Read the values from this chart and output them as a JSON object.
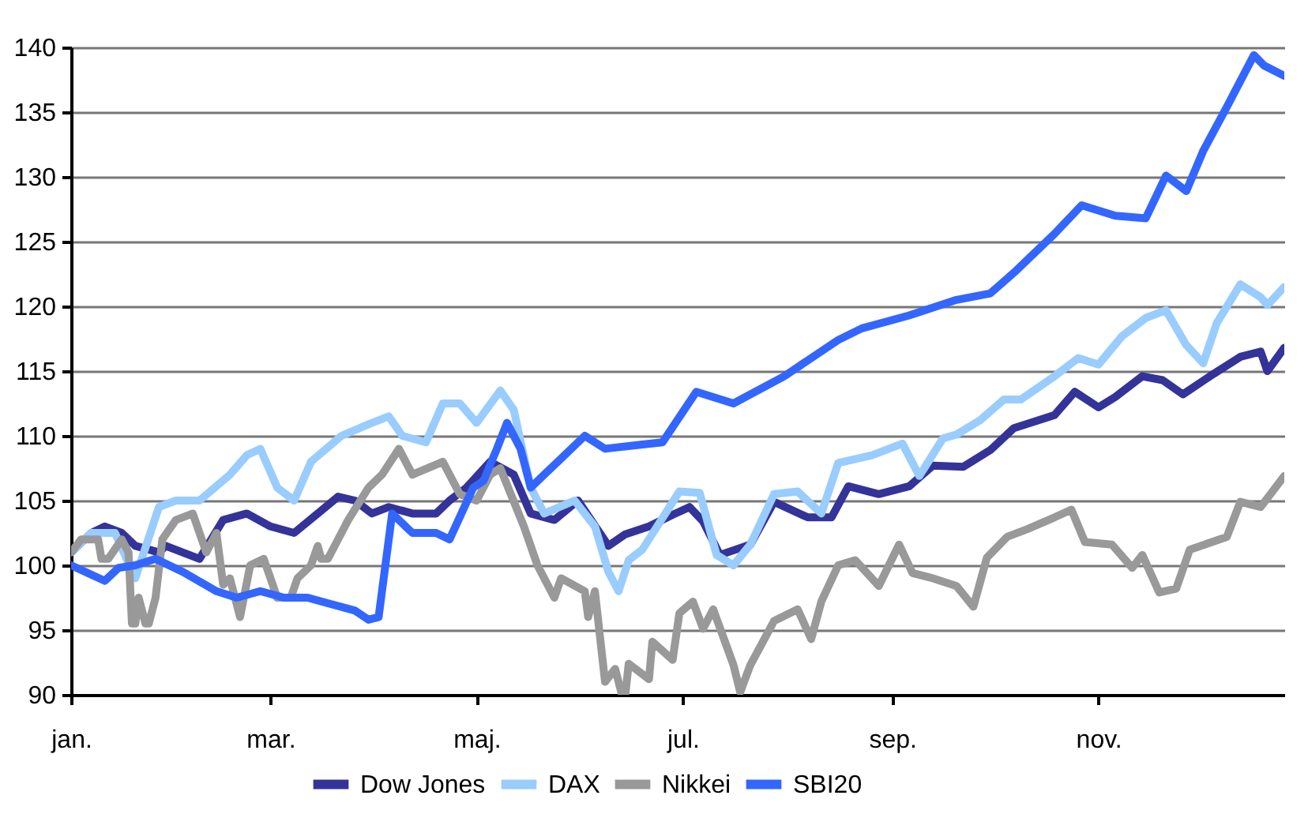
{
  "chart_data": {
    "type": "line",
    "xlim": [
      "--01-01",
      "--12-26"
    ],
    "ylim": [
      90,
      140
    ],
    "xticks": [
      {
        "value": "--01-01",
        "label": "jan."
      },
      {
        "value": "--03-01",
        "label": "mar."
      },
      {
        "value": "--05-01",
        "label": "maj."
      },
      {
        "value": "--07-01",
        "label": "jul."
      },
      {
        "value": "--09-01",
        "label": "sep."
      },
      {
        "value": "--11-01",
        "label": "nov."
      }
    ],
    "yticks": [
      90,
      95,
      100,
      105,
      110,
      115,
      120,
      125,
      130,
      135,
      140
    ],
    "grid": "y",
    "legend": "bottom",
    "marker": "none",
    "line_style": "solid",
    "series": [
      {
        "name": "Dow Jones",
        "color": "#333399",
        "x": [
          "--01-01",
          "--01-07",
          "--01-11",
          "--01-16",
          "--01-20",
          "--01-27",
          "--01-29",
          "--02-08",
          "--02-15",
          "--02-22",
          "--03-01",
          "--03-08",
          "--03-15",
          "--03-21",
          "--03-26",
          "--03-31",
          "--04-05",
          "--04-12",
          "--04-19",
          "--04-23",
          "--04-28",
          "--05-05",
          "--05-12",
          "--05-17",
          "--05-24",
          "--05-31",
          "--06-09",
          "--06-14",
          "--06-21",
          "--06-28",
          "--07-03",
          "--07-07",
          "--07-12",
          "--07-21",
          "--07-28",
          "--08-07",
          "--08-14",
          "--08-19",
          "--08-28",
          "--09-06",
          "--09-13",
          "--09-22",
          "--09-30",
          "--10-07",
          "--10-19",
          "--10-25",
          "--11-01",
          "--11-06",
          "--11-14",
          "--11-20",
          "--11-26",
          "--12-04",
          "--12-13",
          "--12-19",
          "--12-21",
          "--12-26"
        ],
        "values": [
          101,
          102.5,
          103,
          102.5,
          101.5,
          101,
          101.5,
          100.5,
          103.5,
          104,
          103,
          102.5,
          104,
          105.3,
          105,
          104,
          104.5,
          104,
          104,
          105,
          106,
          108,
          107,
          104,
          103.5,
          105,
          101.5,
          102.4,
          103,
          103.9,
          104.5,
          103.4,
          100.8,
          101.6,
          104.9,
          103.7,
          103.7,
          106.1,
          105.5,
          106.1,
          107.7,
          107.6,
          108.9,
          110.6,
          111.6,
          113.4,
          112.2,
          113,
          114.6,
          114.3,
          113.2,
          114.6,
          116.1,
          116.5,
          115,
          116.8
        ]
      },
      {
        "name": "DAX",
        "color": "#99ccff",
        "x": [
          "--01-01",
          "--01-07",
          "--01-14",
          "--01-20",
          "--01-27",
          "--02-01",
          "--02-08",
          "--02-17",
          "--02-22",
          "--02-26",
          "--03-03",
          "--03-08",
          "--03-13",
          "--03-22",
          "--03-31",
          "--04-05",
          "--04-09",
          "--04-16",
          "--04-21",
          "--04-26",
          "--05-01",
          "--05-08",
          "--05-12",
          "--05-17",
          "--05-21",
          "--05-30",
          "--06-05",
          "--06-09",
          "--06-12",
          "--06-15",
          "--06-19",
          "--06-30",
          "--07-06",
          "--07-11",
          "--07-16",
          "--07-21",
          "--07-28",
          "--08-04",
          "--08-11",
          "--08-16",
          "--08-26",
          "--09-04",
          "--09-09",
          "--09-16",
          "--09-20",
          "--09-27",
          "--10-04",
          "--10-09",
          "--10-19",
          "--10-26",
          "--11-01",
          "--11-08",
          "--11-15",
          "--11-21",
          "--11-27",
          "--12-02",
          "--12-06",
          "--12-13",
          "--12-19",
          "--12-21",
          "--12-26"
        ],
        "values": [
          101,
          102.5,
          102.5,
          99,
          104.5,
          105,
          105,
          107,
          108.5,
          109,
          106,
          105,
          108,
          110,
          111,
          111.5,
          110,
          109.5,
          112.5,
          112.5,
          111,
          113.5,
          112,
          106,
          104,
          105,
          103,
          99.5,
          98,
          100.4,
          101.2,
          105.7,
          105.6,
          100.8,
          100,
          101.6,
          105.5,
          105.7,
          104,
          107.9,
          108.5,
          109.4,
          106.9,
          109.8,
          110.1,
          111.2,
          112.8,
          112.8,
          114.6,
          116,
          115.5,
          117.7,
          119.1,
          119.7,
          117,
          115.6,
          118.7,
          121.7,
          120.7,
          120.1,
          121.5
        ]
      },
      {
        "name": "Nikkei",
        "color": "#999999",
        "x": [
          "--01-01",
          "--01-04",
          "--01-09",
          "--01-10",
          "--01-12",
          "--01-16",
          "--01-18",
          "--01-19",
          "--01-20",
          "--01-21",
          "--01-23",
          "--01-24",
          "--01-26",
          "--01-28",
          "--02-01",
          "--02-06",
          "--02-10",
          "--02-13",
          "--02-15",
          "--02-17",
          "--02-20",
          "--02-23",
          "--02-27",
          "--03-03",
          "--03-07",
          "--03-09",
          "--03-13",
          "--03-15",
          "--03-16",
          "--03-18",
          "--03-22",
          "--03-24",
          "--03-30",
          "--04-03",
          "--04-08",
          "--04-12",
          "--04-21",
          "--04-26",
          "--05-01",
          "--05-05",
          "--05-08",
          "--05-15",
          "--05-19",
          "--05-24",
          "--05-26",
          "--06-02",
          "--06-03",
          "--06-05",
          "--06-08",
          "--06-11",
          "--06-13",
          "--06-14",
          "--06-15",
          "--06-21",
          "--06-22",
          "--06-28",
          "--06-30",
          "--07-04",
          "--07-07",
          "--07-10",
          "--07-16",
          "--07-18",
          "--07-21",
          "--07-28",
          "--08-04",
          "--08-08",
          "--08-11",
          "--08-16",
          "--08-21",
          "--08-28",
          "--09-03",
          "--09-07",
          "--09-13",
          "--09-20",
          "--09-25",
          "--09-29",
          "--10-05",
          "--10-11",
          "--10-19",
          "--10-24",
          "--10-28",
          "--11-05",
          "--11-11",
          "--11-14",
          "--11-19",
          "--11-24",
          "--11-28",
          "--12-09",
          "--12-13",
          "--12-19",
          "--12-26"
        ],
        "values": [
          101,
          102,
          102,
          100.5,
          100.5,
          102,
          101,
          95.5,
          95.5,
          97.5,
          95.5,
          95.5,
          97.5,
          102,
          103.5,
          104,
          101,
          102.5,
          98.5,
          99,
          96,
          100,
          100.5,
          97.5,
          97.5,
          99,
          100,
          101.5,
          100.5,
          100.5,
          102.5,
          103.5,
          106,
          107,
          109,
          107,
          108,
          105.5,
          105,
          107,
          107.5,
          103,
          100,
          97.5,
          99,
          98,
          96,
          98,
          91,
          92,
          90,
          90,
          92.4,
          91.2,
          94.1,
          92.7,
          96.3,
          97.2,
          95.1,
          96.6,
          92.3,
          90.2,
          92.3,
          95.7,
          96.6,
          94.3,
          97.2,
          100,
          100.4,
          98.4,
          101.6,
          99.4,
          99,
          98.4,
          96.8,
          100.6,
          102.2,
          102.8,
          103.7,
          104.3,
          101.8,
          101.6,
          99.8,
          100.8,
          97.9,
          98.2,
          101.2,
          102.2,
          104.9,
          104.5,
          106.9
        ]
      },
      {
        "name": "SBI20",
        "color": "#3366ff",
        "x": [
          "--01-01",
          "--01-11",
          "--01-15",
          "--01-20",
          "--01-26",
          "--02-03",
          "--02-13",
          "--02-19",
          "--02-26",
          "--03-05",
          "--03-12",
          "--03-19",
          "--03-26",
          "--03-30",
          "--04-02",
          "--04-06",
          "--04-12",
          "--04-19",
          "--04-23",
          "--04-30",
          "--05-03",
          "--05-07",
          "--05-10",
          "--05-14",
          "--05-17",
          "--05-21",
          "--05-25",
          "--06-02",
          "--06-08",
          "--06-18",
          "--06-25",
          "--07-05",
          "--07-16",
          "--07-31",
          "--08-16",
          "--08-23",
          "--09-06",
          "--09-20",
          "--09-30",
          "--10-07",
          "--10-19",
          "--10-27",
          "--11-06",
          "--11-15",
          "--11-21",
          "--11-27",
          "--12-02",
          "--12-09",
          "--12-13",
          "--12-17",
          "--12-20",
          "--12-26"
        ],
        "values": [
          100,
          98.8,
          99.8,
          100,
          100.5,
          99.5,
          98,
          97.5,
          98,
          97.5,
          97.5,
          97,
          96.5,
          95.8,
          96,
          104,
          102.5,
          102.5,
          102,
          106,
          106.5,
          109,
          111,
          109,
          106,
          107,
          108,
          110,
          109,
          109.3,
          109.5,
          113.4,
          112.5,
          114.6,
          117.4,
          118.3,
          119.3,
          120.5,
          121,
          122.6,
          125.6,
          127.8,
          127,
          126.8,
          130.1,
          128.9,
          132,
          135.4,
          137.4,
          139.4,
          138.6,
          137.8
        ]
      }
    ]
  }
}
